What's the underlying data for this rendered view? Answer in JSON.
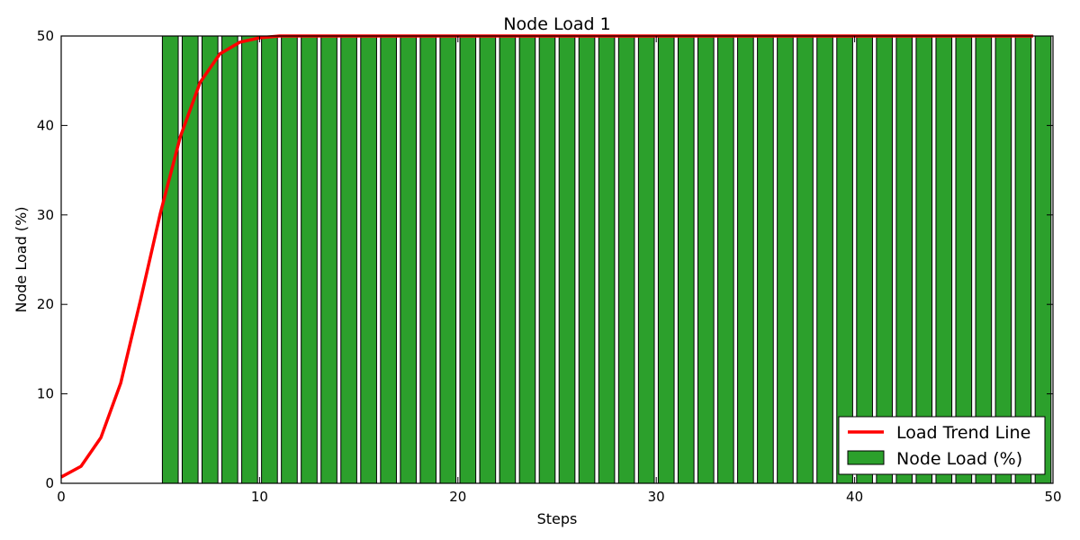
{
  "chart_data": {
    "type": "bar",
    "title": "Node Load 1",
    "xlabel": "Steps",
    "ylabel": "Node Load (%)",
    "xlim": [
      0,
      50
    ],
    "ylim": [
      0,
      50
    ],
    "xticks": [
      0,
      10,
      20,
      30,
      40,
      50
    ],
    "yticks": [
      0,
      10,
      20,
      30,
      40,
      50
    ],
    "grid": false,
    "legend_position": "lower-right",
    "bar_series": {
      "name": "Node Load (%)",
      "color": "#2ca02c",
      "edge_color": "#000000",
      "x": [
        0,
        1,
        2,
        3,
        4,
        5,
        6,
        7,
        8,
        9,
        10,
        11,
        12,
        13,
        14,
        15,
        16,
        17,
        18,
        19,
        20,
        21,
        22,
        23,
        24,
        25,
        26,
        27,
        28,
        29,
        30,
        31,
        32,
        33,
        34,
        35,
        36,
        37,
        38,
        39,
        40,
        41,
        42,
        43,
        44,
        45,
        46,
        47,
        48,
        49
      ],
      "values": [
        0,
        0,
        0,
        0,
        0,
        50,
        50,
        50,
        50,
        50,
        50,
        50,
        50,
        50,
        50,
        50,
        50,
        50,
        50,
        50,
        50,
        50,
        50,
        50,
        50,
        50,
        50,
        50,
        50,
        50,
        50,
        50,
        50,
        50,
        50,
        50,
        50,
        50,
        50,
        50,
        50,
        50,
        50,
        50,
        50,
        50,
        50,
        50,
        50,
        50
      ]
    },
    "line_series": {
      "name": "Load Trend Line",
      "color": "#ff0000",
      "x": [
        0,
        1,
        2,
        3,
        4,
        5,
        6,
        7,
        8,
        9,
        10,
        11,
        12,
        13,
        14,
        15,
        16,
        17,
        18,
        19,
        20,
        21,
        22,
        23,
        24,
        25,
        26,
        27,
        28,
        29,
        30,
        31,
        32,
        33,
        34,
        35,
        36,
        37,
        38,
        39,
        40,
        41,
        42,
        43,
        44,
        45,
        46,
        47,
        48,
        49
      ],
      "values": [
        0.7,
        1.9,
        5.1,
        11.2,
        20.5,
        30.2,
        38.7,
        44.8,
        48.0,
        49.3,
        49.8,
        50,
        50,
        50,
        50,
        50,
        50,
        50,
        50,
        50,
        50,
        50,
        50,
        50,
        50,
        50,
        50,
        50,
        50,
        50,
        50,
        50,
        50,
        50,
        50,
        50,
        50,
        50,
        50,
        50,
        50,
        50,
        50,
        50,
        50,
        50,
        50,
        50,
        50,
        50
      ]
    },
    "legend": [
      "Load Trend Line",
      "Node Load (%)"
    ]
  }
}
